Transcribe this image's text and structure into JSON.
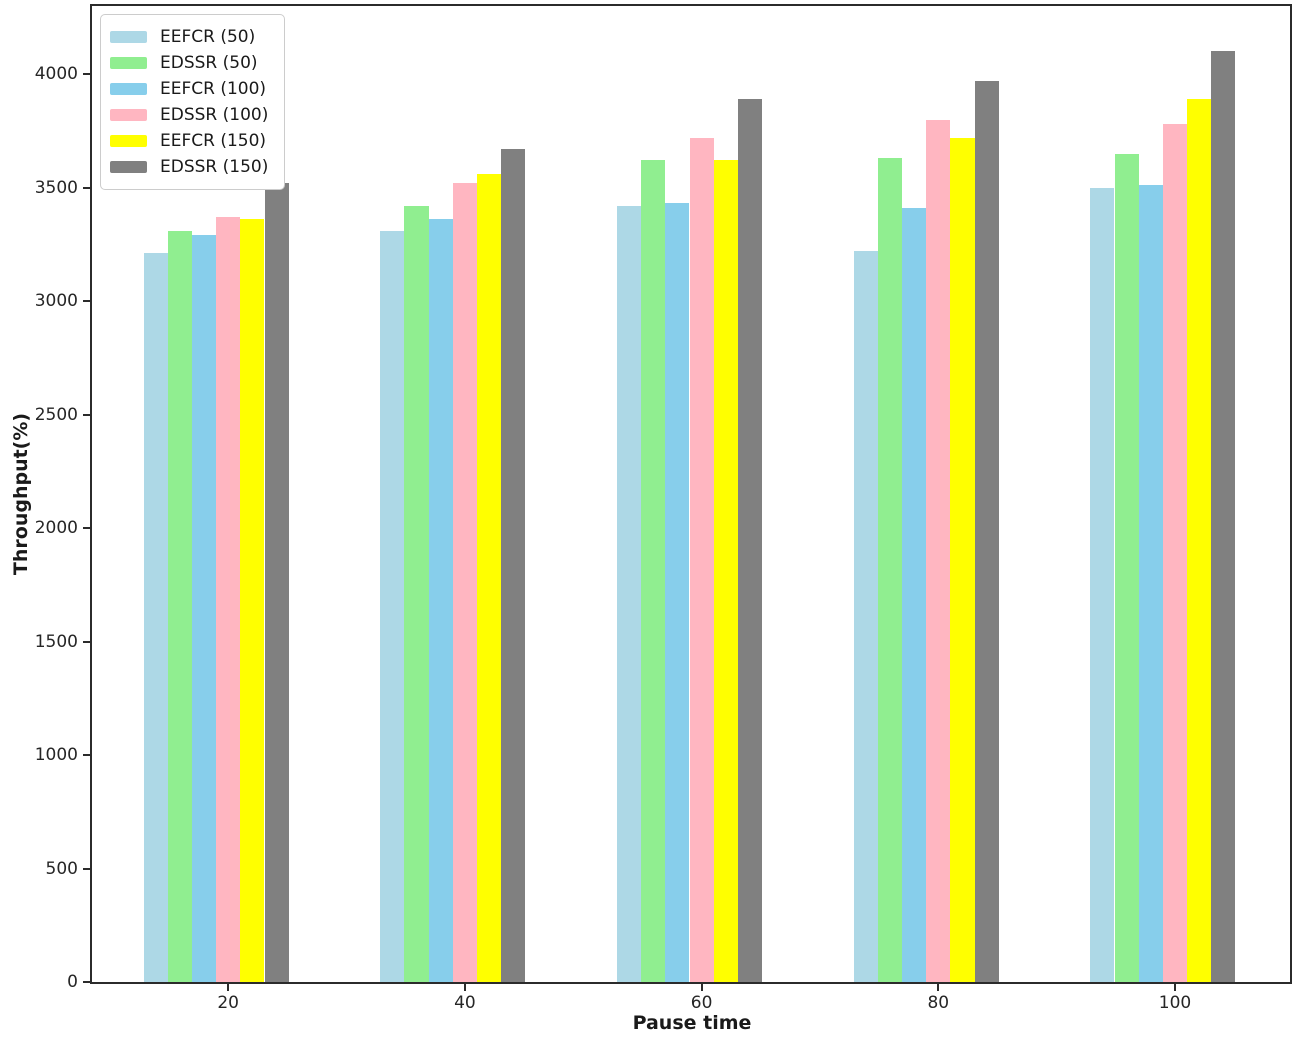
{
  "chart_data": {
    "type": "bar",
    "title": "",
    "xlabel": "Pause time",
    "ylabel": "Throughput(%)",
    "categories": [
      "20",
      "40",
      "60",
      "80",
      "100"
    ],
    "series": [
      {
        "name": "EEFCR (50)",
        "color": "#add8e6",
        "values": [
          3210,
          3310,
          3420,
          3220,
          3500
        ]
      },
      {
        "name": "EDSSR (50)",
        "color": "#90ee90",
        "values": [
          3310,
          3420,
          3620,
          3630,
          3650
        ]
      },
      {
        "name": "EEFCR (100)",
        "color": "#87ceeb",
        "values": [
          3290,
          3360,
          3430,
          3410,
          3510
        ]
      },
      {
        "name": "EDSSR (100)",
        "color": "#ffb6c1",
        "values": [
          3370,
          3520,
          3720,
          3800,
          3780
        ]
      },
      {
        "name": "EEFCR (150)",
        "color": "#ffff00",
        "values": [
          3360,
          3560,
          3620,
          3720,
          3890
        ]
      },
      {
        "name": "EDSSR (150)",
        "color": "#808080",
        "values": [
          3520,
          3670,
          3890,
          3970,
          4100
        ]
      }
    ],
    "ylim": [
      0,
      4300
    ],
    "yticks": [
      0,
      500,
      1000,
      1500,
      2000,
      2500,
      3000,
      3500,
      4000
    ],
    "grid": false,
    "legend_position": "upper-left"
  }
}
